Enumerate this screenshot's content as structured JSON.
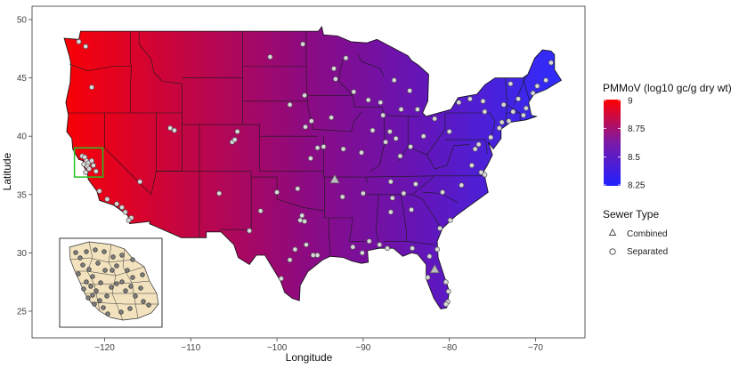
{
  "chart_data": {
    "type": "map",
    "xlabel": "Longitude",
    "ylabel": "Latitude",
    "x_ticks": [
      -120,
      -110,
      -100,
      -90,
      -80,
      -70
    ],
    "x_tick_labels": [
      "−120",
      "−110",
      "−100",
      "−90",
      "−80",
      "−70"
    ],
    "y_ticks": [
      25,
      30,
      35,
      40,
      45,
      50
    ],
    "y_tick_labels": [
      "25",
      "30",
      "35",
      "40",
      "45",
      "50"
    ],
    "xlim": [
      -127.5,
      -64.5
    ],
    "ylim": [
      22.6,
      51.3
    ],
    "grid": false,
    "color_legend": {
      "title": "PMMoV (log10 gc/g dry wt)",
      "min": 8.25,
      "max": 9,
      "breaks": [
        9,
        8.75,
        8.5,
        8.25
      ],
      "break_labels": [
        "9",
        "8.75",
        "8.5",
        "8.25"
      ],
      "low_color": "#2020ff",
      "mid_color": "#7a1aa8",
      "high_color": "#ff0000"
    },
    "shape_legend": {
      "title": "Sewer Type",
      "entries": [
        {
          "label": "Combined",
          "shape": "triangle"
        },
        {
          "label": "Separated",
          "shape": "circle"
        }
      ]
    },
    "highlight_box": {
      "color": "#22c422",
      "lon": [
        -123.5,
        -120.2
      ],
      "lat": [
        36.5,
        39.0
      ]
    },
    "sites_separated": [
      [
        -123.0,
        48.1
      ],
      [
        -122.2,
        47.7
      ],
      [
        -121.5,
        44.2
      ],
      [
        -122.6,
        38.3
      ],
      [
        -122.3,
        38.2
      ],
      [
        -122.1,
        37.9
      ],
      [
        -121.9,
        37.7
      ],
      [
        -122.4,
        37.6
      ],
      [
        -122.0,
        37.4
      ],
      [
        -121.5,
        37.9
      ],
      [
        -121.3,
        37.5
      ],
      [
        -121.8,
        37.2
      ],
      [
        -121.0,
        37.0
      ],
      [
        -122.2,
        36.9
      ],
      [
        -120.6,
        35.3
      ],
      [
        -119.7,
        34.6
      ],
      [
        -118.6,
        34.2
      ],
      [
        -118.0,
        33.9
      ],
      [
        -117.6,
        33.5
      ],
      [
        -116.9,
        33.0
      ],
      [
        -117.2,
        32.8
      ],
      [
        -115.9,
        36.1
      ],
      [
        -112.4,
        40.7
      ],
      [
        -111.9,
        40.5
      ],
      [
        -105.2,
        39.5
      ],
      [
        -104.6,
        40.4
      ],
      [
        -104.9,
        39.7
      ],
      [
        -100.0,
        35.2
      ],
      [
        -97.6,
        35.5
      ],
      [
        -97.1,
        33.2
      ],
      [
        -97.3,
        32.8
      ],
      [
        -96.8,
        32.7
      ],
      [
        -95.8,
        29.8
      ],
      [
        -95.3,
        29.8
      ],
      [
        -97.9,
        30.3
      ],
      [
        -98.5,
        29.4
      ],
      [
        -99.5,
        27.8
      ],
      [
        -96.6,
        30.7
      ],
      [
        -96.1,
        38.1
      ],
      [
        -95.3,
        39.0
      ],
      [
        -93.7,
        41.6
      ],
      [
        -93.2,
        44.9
      ],
      [
        -93.4,
        45.8
      ],
      [
        -92.0,
        46.7
      ],
      [
        -91.1,
        43.8
      ],
      [
        -89.4,
        43.1
      ],
      [
        -88.0,
        42.9
      ],
      [
        -87.7,
        41.8
      ],
      [
        -88.9,
        40.5
      ],
      [
        -87.4,
        39.5
      ],
      [
        -86.2,
        39.8
      ],
      [
        -84.5,
        39.1
      ],
      [
        -83.0,
        40.0
      ],
      [
        -81.7,
        41.5
      ],
      [
        -83.7,
        42.3
      ],
      [
        -85.6,
        42.3
      ],
      [
        -84.6,
        43.9
      ],
      [
        -86.4,
        44.8
      ],
      [
        -80.0,
        40.4
      ],
      [
        -77.0,
        38.9
      ],
      [
        -76.6,
        39.3
      ],
      [
        -75.2,
        39.9
      ],
      [
        -74.2,
        40.7
      ],
      [
        -73.9,
        41.2
      ],
      [
        -73.1,
        41.3
      ],
      [
        -72.6,
        42.1
      ],
      [
        -71.1,
        42.4
      ],
      [
        -71.4,
        41.8
      ],
      [
        -72.0,
        43.2
      ],
      [
        -72.9,
        44.5
      ],
      [
        -73.7,
        42.7
      ],
      [
        -76.1,
        43.0
      ],
      [
        -77.6,
        43.2
      ],
      [
        -78.9,
        42.9
      ],
      [
        -70.3,
        43.7
      ],
      [
        -69.8,
        44.3
      ],
      [
        -68.8,
        44.8
      ],
      [
        -68.2,
        46.3
      ],
      [
        -75.9,
        42.1
      ],
      [
        -77.4,
        37.5
      ],
      [
        -76.3,
        36.9
      ],
      [
        -75.9,
        36.7
      ],
      [
        -78.6,
        35.8
      ],
      [
        -80.8,
        35.2
      ],
      [
        -79.9,
        32.8
      ],
      [
        -81.1,
        32.1
      ],
      [
        -81.4,
        30.3
      ],
      [
        -82.3,
        29.7
      ],
      [
        -80.4,
        27.5
      ],
      [
        -80.1,
        26.7
      ],
      [
        -80.2,
        25.8
      ],
      [
        -80.4,
        25.6
      ],
      [
        -82.5,
        27.9
      ],
      [
        -84.4,
        33.7
      ],
      [
        -86.8,
        33.5
      ],
      [
        -86.6,
        34.7
      ],
      [
        -86.8,
        36.1
      ],
      [
        -85.3,
        35.1
      ],
      [
        -83.9,
        35.9
      ],
      [
        -85.7,
        38.3
      ],
      [
        -90.0,
        35.1
      ],
      [
        -90.2,
        38.6
      ],
      [
        -92.3,
        38.9
      ],
      [
        -94.6,
        39.1
      ],
      [
        -92.4,
        34.8
      ],
      [
        -90.1,
        30.0
      ],
      [
        -91.2,
        30.5
      ],
      [
        -88.1,
        30.7
      ],
      [
        -84.3,
        30.4
      ],
      [
        -87.2,
        30.4
      ],
      [
        -89.3,
        31.0
      ],
      [
        -96.7,
        40.8
      ],
      [
        -96.0,
        41.3
      ],
      [
        -98.5,
        42.7
      ],
      [
        -100.8,
        46.8
      ],
      [
        -97.0,
        47.9
      ],
      [
        -96.8,
        43.5
      ],
      [
        -106.7,
        35.1
      ],
      [
        -101.9,
        33.6
      ],
      [
        -103.2,
        31.9
      ],
      [
        -86.9,
        40.4
      ]
    ],
    "sites_combined": [
      [
        -93.3,
        36.3
      ],
      [
        -81.7,
        28.6
      ]
    ],
    "inset": {
      "description": "county map of California Bay Area with site locations",
      "sites": 42
    }
  }
}
